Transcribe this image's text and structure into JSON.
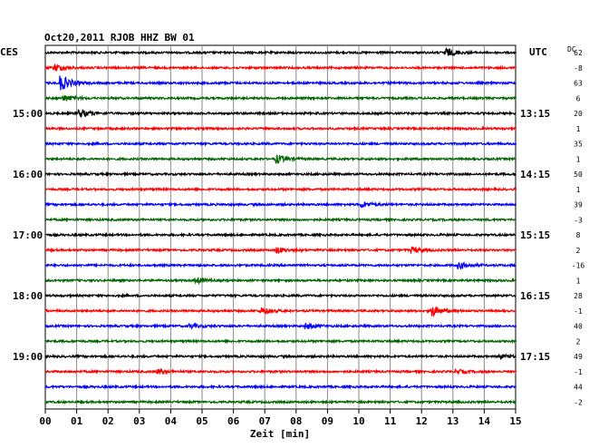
{
  "header": {
    "title": "Oct20,2011  RJOB HHZ BW 01",
    "left_zone": "CES",
    "right_zone": "UTC",
    "dc_label": "DC"
  },
  "chart_data": {
    "type": "line",
    "title": "Oct20,2011  RJOB HHZ BW 01",
    "xlabel": "Zeit [min]",
    "ylabel": "",
    "xlim": [
      0,
      15
    ],
    "x_ticks": [
      "00",
      "01",
      "02",
      "03",
      "04",
      "05",
      "06",
      "07",
      "08",
      "09",
      "10",
      "11",
      "12",
      "13",
      "14",
      "15"
    ],
    "grid": true,
    "trace_minutes": 15,
    "trace_colors": [
      "#000000",
      "#ff0000",
      "#0000ff",
      "#006400"
    ],
    "left_time_labels": [
      {
        "trace": 4,
        "label": "15:00"
      },
      {
        "trace": 8,
        "label": "16:00"
      },
      {
        "trace": 12,
        "label": "17:00"
      },
      {
        "trace": 16,
        "label": "18:00"
      },
      {
        "trace": 20,
        "label": "19:00"
      }
    ],
    "right_time_labels": [
      {
        "trace": 4,
        "label": "13:15"
      },
      {
        "trace": 8,
        "label": "14:15"
      },
      {
        "trace": 12,
        "label": "15:15"
      },
      {
        "trace": 16,
        "label": "16:15"
      },
      {
        "trace": 20,
        "label": "17:15"
      }
    ],
    "dc_offsets": [
      "62",
      "-8",
      "63",
      "6",
      "20",
      "1",
      "35",
      "1",
      "50",
      "1",
      "39",
      "-3",
      "8",
      "2",
      "-16",
      "1",
      "28",
      "-1",
      "40",
      "2",
      "49",
      "-1",
      "44",
      "-2"
    ],
    "events": [
      {
        "trace": 0,
        "minute": 12.8,
        "amplitude": 4
      },
      {
        "trace": 1,
        "minute": 0.3,
        "amplitude": 4
      },
      {
        "trace": 2,
        "minute": 0.5,
        "amplitude": 8
      },
      {
        "trace": 3,
        "minute": 0.6,
        "amplitude": 3
      },
      {
        "trace": 4,
        "minute": 1.1,
        "amplitude": 4
      },
      {
        "trace": 7,
        "minute": 7.4,
        "amplitude": 4
      },
      {
        "trace": 10,
        "minute": 10.1,
        "amplitude": 3
      },
      {
        "trace": 13,
        "minute": 7.4,
        "amplitude": 3
      },
      {
        "trace": 13,
        "minute": 11.7,
        "amplitude": 3
      },
      {
        "trace": 14,
        "minute": 13.2,
        "amplitude": 3
      },
      {
        "trace": 15,
        "minute": 4.8,
        "amplitude": 3
      },
      {
        "trace": 17,
        "minute": 6.9,
        "amplitude": 3
      },
      {
        "trace": 17,
        "minute": 12.3,
        "amplitude": 6
      },
      {
        "trace": 18,
        "minute": 4.6,
        "amplitude": 2
      },
      {
        "trace": 18,
        "minute": 8.3,
        "amplitude": 3
      },
      {
        "trace": 21,
        "minute": 3.6,
        "amplitude": 2
      },
      {
        "trace": 21,
        "minute": 13.1,
        "amplitude": 2
      },
      {
        "trace": 20,
        "minute": 14.5,
        "amplitude": 2
      }
    ]
  }
}
